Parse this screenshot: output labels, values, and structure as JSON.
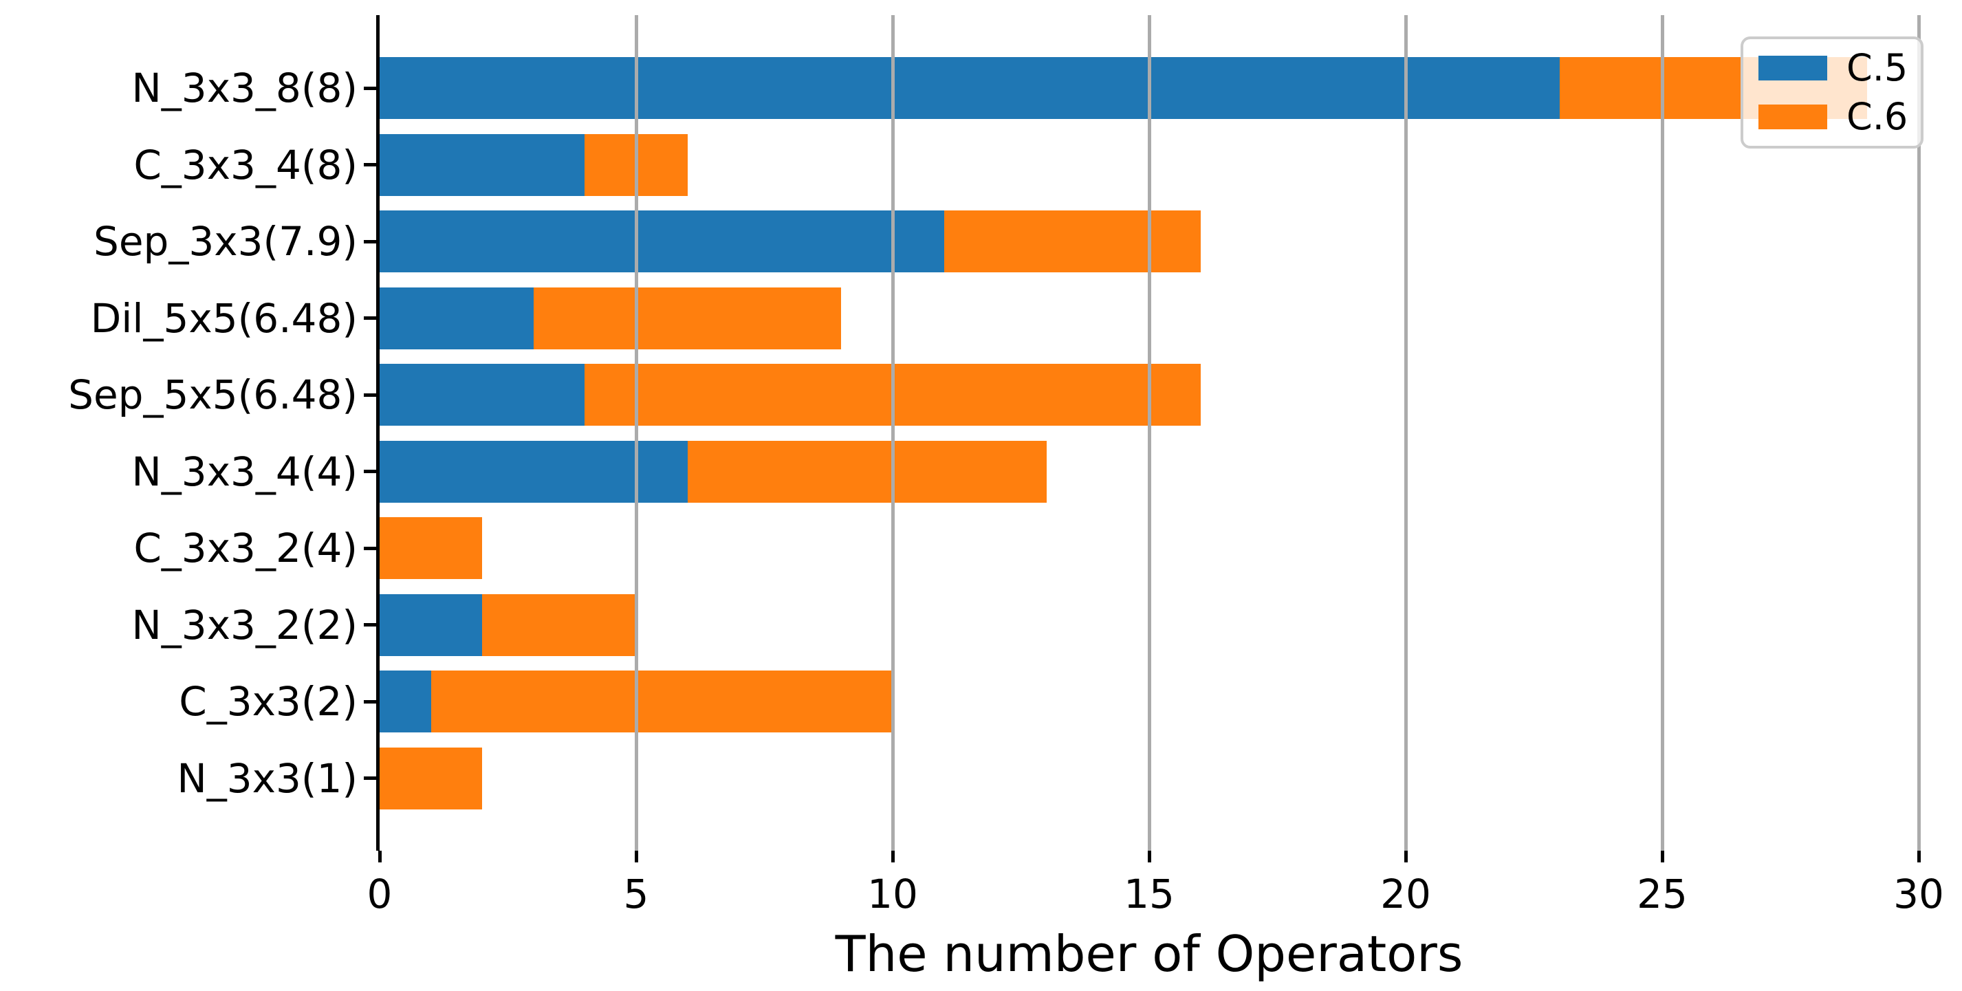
{
  "chart_data": {
    "type": "bar",
    "orientation": "horizontal",
    "stacked": true,
    "title": "",
    "xlabel": "The number of Operators",
    "ylabel": "",
    "categories": [
      "N_3x3_8(8)",
      "C_3x3_4(8)",
      "Sep_3x3(7.9)",
      "Dil_5x5(6.48)",
      "Sep_5x5(6.48)",
      "N_3x3_4(4)",
      "C_3x3_2(4)",
      "N_3x3_2(2)",
      "C_3x3(2)",
      "N_3x3(1)"
    ],
    "series": [
      {
        "name": "C.5",
        "color": "#1f77b4",
        "values": [
          23,
          4,
          11,
          3,
          4,
          6,
          0,
          2,
          1,
          0
        ]
      },
      {
        "name": "C.6",
        "color": "#ff7f0e",
        "values": [
          6,
          2,
          5,
          6,
          12,
          7,
          2,
          3,
          9,
          2
        ]
      }
    ],
    "totals": [
      29,
      6,
      16,
      9,
      16,
      13,
      2,
      5,
      10,
      2
    ],
    "x_tick_labels": [
      "0",
      "5",
      "10",
      "15",
      "20",
      "25",
      "30"
    ],
    "x_tick_values": [
      0,
      5,
      10,
      15,
      20,
      25,
      30
    ],
    "xlim": [
      0,
      30.8
    ],
    "grid": "vertical gridlines at x ticks, drawn over bars",
    "legend": {
      "position": "upper right",
      "entries": [
        "C.5",
        "C.6"
      ]
    }
  },
  "styles": {
    "bar_blue": "#1f77b4",
    "bar_orange": "#ff7f0e",
    "grid_color": "#ababab",
    "axis_color": "#000000",
    "legend_border": "#cccccc",
    "background": "#ffffff"
  }
}
